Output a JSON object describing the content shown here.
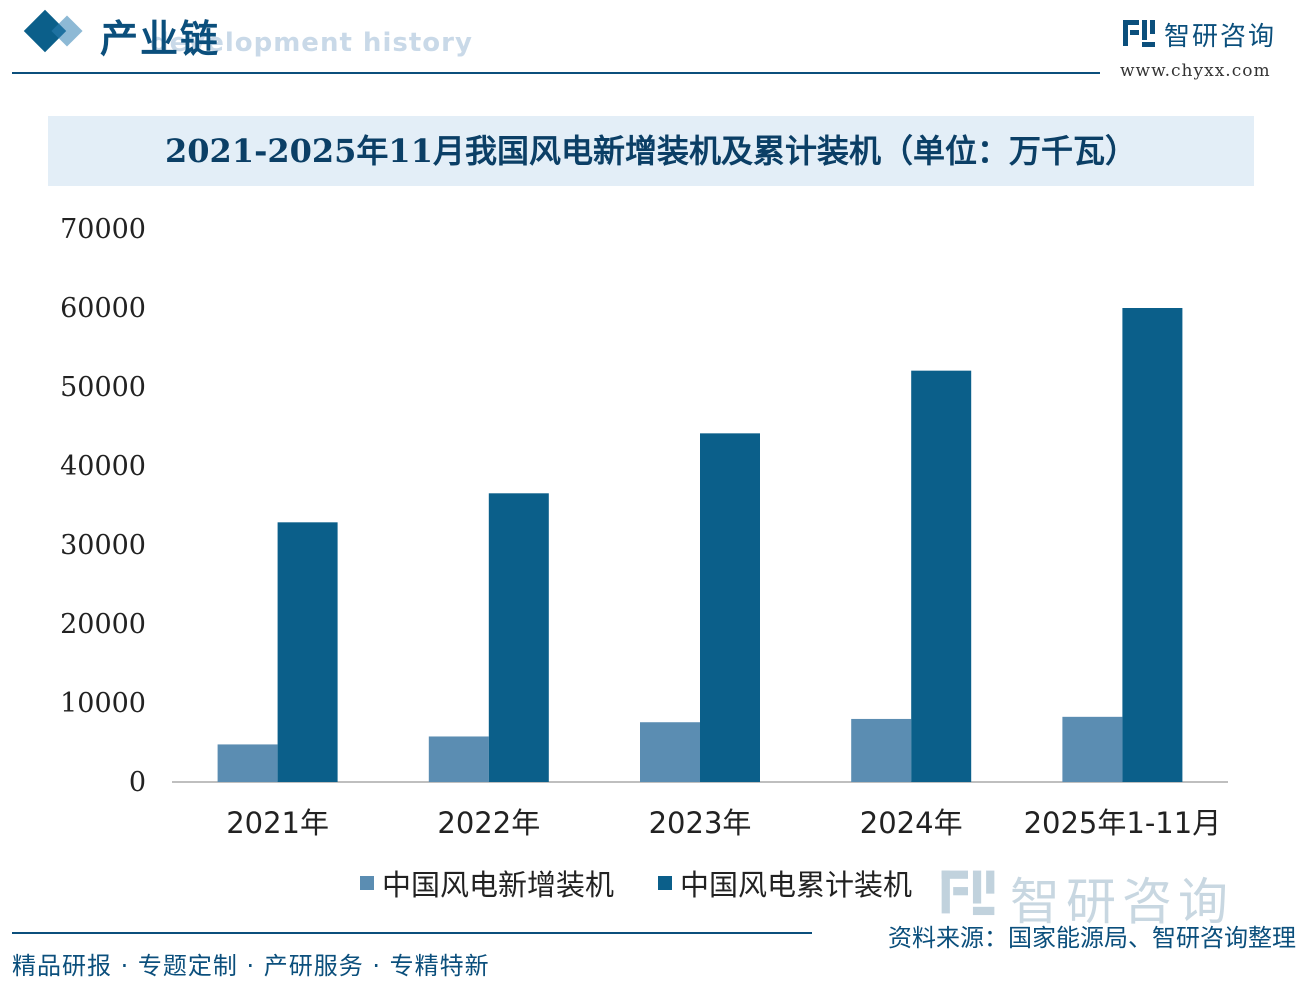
{
  "header": {
    "title": "产业链",
    "subtitle_watermark": "development history"
  },
  "brand": {
    "name": "智研咨询",
    "url": "www.chyxx.com"
  },
  "chart_data": {
    "type": "bar",
    "title": "2021-2025年11月我国风电新增装机及累计装机（单位：万千瓦）",
    "categories": [
      "2021年",
      "2022年",
      "2023年",
      "2024年",
      "2025年1-11月"
    ],
    "series": [
      {
        "name": "中国风电新增装机",
        "color": "#5b8db2",
        "values": [
          4757,
          5763,
          7566,
          7982,
          8250
        ]
      },
      {
        "name": "中国风电累计装机",
        "color": "#0b5f8a",
        "values": [
          32871,
          36544,
          44134,
          52068,
          60000
        ]
      }
    ],
    "ylim": [
      0,
      70000
    ],
    "yticks": [
      0,
      10000,
      20000,
      30000,
      40000,
      50000,
      60000,
      70000
    ],
    "grid": false,
    "legend_position": "bottom"
  },
  "watermark": {
    "text": "智研咨询"
  },
  "footer": {
    "slogan": "精品研报 · 专题定制 · 产研服务 · 专精特新",
    "source": "资料来源：国家能源局、智研咨询整理"
  }
}
